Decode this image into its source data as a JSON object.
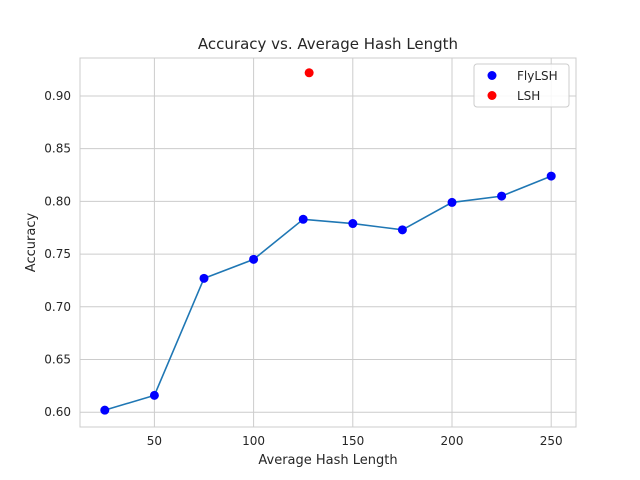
{
  "chart_data": {
    "type": "scatter",
    "title": "Accuracy vs. Average Hash Length",
    "xlabel": "Average Hash Length",
    "ylabel": "Accuracy",
    "xlim": [
      12.5,
      262.5
    ],
    "ylim": [
      0.586,
      0.936
    ],
    "xticks": [
      50,
      100,
      150,
      200,
      250
    ],
    "yticks": [
      0.6,
      0.65,
      0.7,
      0.75,
      0.8,
      0.85,
      0.9
    ],
    "grid": true,
    "legend_position": "top-right",
    "series": [
      {
        "name": "FlyLSH",
        "marker_color": "#0000ff",
        "line_color": "#1f77b4",
        "connected": true,
        "x": [
          25,
          50,
          75,
          100,
          125,
          150,
          175,
          200,
          225,
          250
        ],
        "y": [
          0.602,
          0.616,
          0.727,
          0.745,
          0.783,
          0.779,
          0.773,
          0.799,
          0.805,
          0.824
        ]
      },
      {
        "name": "LSH",
        "marker_color": "#ff0000",
        "connected": false,
        "x": [
          128
        ],
        "y": [
          0.922
        ]
      }
    ]
  }
}
